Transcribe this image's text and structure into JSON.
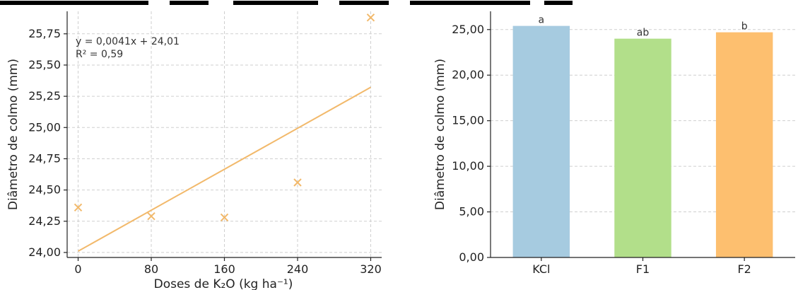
{
  "chart_data": [
    {
      "type": "scatter",
      "title": "",
      "xlabel": "Doses de K₂O (kg ha⁻¹)",
      "ylabel": "Diâmetro de colmo (mm)",
      "xlim": [
        -12,
        332
      ],
      "ylim": [
        23.96,
        25.93
      ],
      "xticks": [
        0,
        80,
        160,
        240,
        320
      ],
      "xtick_labels": [
        "0",
        "80",
        "160",
        "240",
        "320"
      ],
      "yticks": [
        24.0,
        24.25,
        24.5,
        24.75,
        25.0,
        25.25,
        25.5,
        25.75
      ],
      "ytick_labels": [
        "24,00",
        "24,25",
        "24,50",
        "24,75",
        "25,00",
        "25,25",
        "25,50",
        "25,75"
      ],
      "grid": true,
      "points": [
        {
          "x": 0,
          "y": 24.36
        },
        {
          "x": 80,
          "y": 24.29
        },
        {
          "x": 160,
          "y": 24.28
        },
        {
          "x": 240,
          "y": 24.56
        },
        {
          "x": 320,
          "y": 25.88
        }
      ],
      "trend": {
        "slope": 0.0041,
        "intercept": 24.01,
        "x_range": [
          0,
          320
        ]
      },
      "equation_text": "y = 0,0041x + 24,01",
      "r2_text": "R² = 0,59",
      "color": "#f2b96b"
    },
    {
      "type": "bar",
      "title": "",
      "xlabel": "",
      "ylabel": "Diâmetro de colmo (mm)",
      "ylim": [
        0,
        27
      ],
      "yticks": [
        0,
        5,
        10,
        15,
        20,
        25
      ],
      "ytick_labels": [
        "0,00",
        "5,00",
        "10,00",
        "15,00",
        "20,00",
        "25,00"
      ],
      "grid": true,
      "categories": [
        "KCl",
        "F1",
        "F2"
      ],
      "values": [
        25.4,
        24.0,
        24.7
      ],
      "letters": [
        "a",
        "ab",
        "b"
      ],
      "colors": [
        "#a6cbe0",
        "#b2df8a",
        "#fdbf6f"
      ]
    }
  ]
}
